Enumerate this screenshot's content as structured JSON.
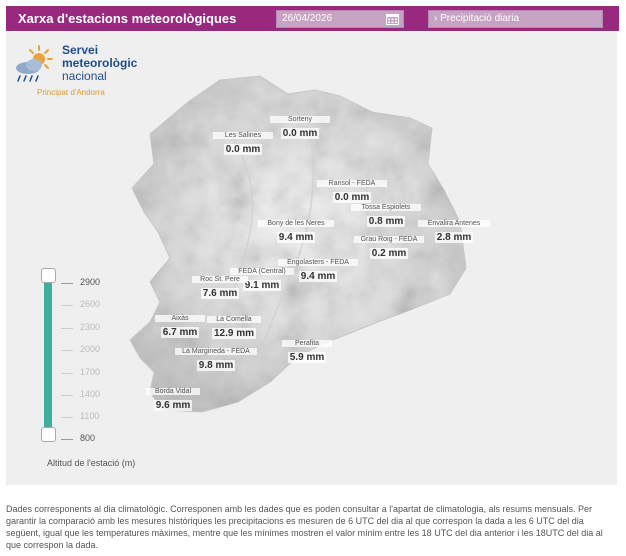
{
  "header": {
    "title": "Xarxa d'estacions meteorològiques",
    "date": "26/04/2026",
    "variable": "› Precipitació diaria"
  },
  "logo": {
    "line1": "Servei",
    "line2": "meteorològic",
    "line3": "nacional",
    "line4": "Principat d'Andorra"
  },
  "stations": [
    {
      "name": "Sorteny",
      "value": "0.0 mm"
    },
    {
      "name": "Les Salines",
      "value": "0.0 mm"
    },
    {
      "name": "Ransol - FEDA",
      "value": "0.0 mm"
    },
    {
      "name": "Tossa Espiolets",
      "value": "0.8 mm"
    },
    {
      "name": "Envalira Antenes",
      "value": "2.8 mm"
    },
    {
      "name": "Bony de les Neres",
      "value": "9.4 mm"
    },
    {
      "name": "Grau Roig - FEDA",
      "value": "0.2 mm"
    },
    {
      "name": "Engolasters - FEDA",
      "value": "9.4 mm"
    },
    {
      "name": "FEDA (Central)",
      "value": "9.1 mm"
    },
    {
      "name": "Roc St. Pere",
      "value": "7.6 mm"
    },
    {
      "name": "Aixàs",
      "value": "6.7 mm"
    },
    {
      "name": "La Comella",
      "value": "12.9 mm"
    },
    {
      "name": "La Margineda - FEDA",
      "value": "9.8 mm"
    },
    {
      "name": "Perafita",
      "value": "5.9 mm"
    },
    {
      "name": "Borda Vidal",
      "value": "9.6 mm"
    }
  ],
  "altitude_slider": {
    "caption": "Altitud de l'estació (m)",
    "ticks": [
      "2900",
      "2600",
      "2300",
      "2000",
      "1700",
      "1400",
      "1100",
      "800"
    ],
    "range": [
      800,
      2900
    ]
  },
  "footnote": "Dades corresponents al dia climatològic. Corresponen amb les dades que es poden consultar a l'apartat de climatologia, als resums mensuals. Per garantir la comparació amb les mesures històriques les precipitacions es mesuren de 6 UTC del dia al que correspon la dada a les 6 UTC del dia següent, igual que les temperatures màximes, mentre que les mínimes mostren el valor mínim entre les 18 UTC del dia anterior i les 18UTC del dia al que correspon la dada.",
  "colors": {
    "header": "#98297f",
    "slider": "#3fae9c"
  }
}
